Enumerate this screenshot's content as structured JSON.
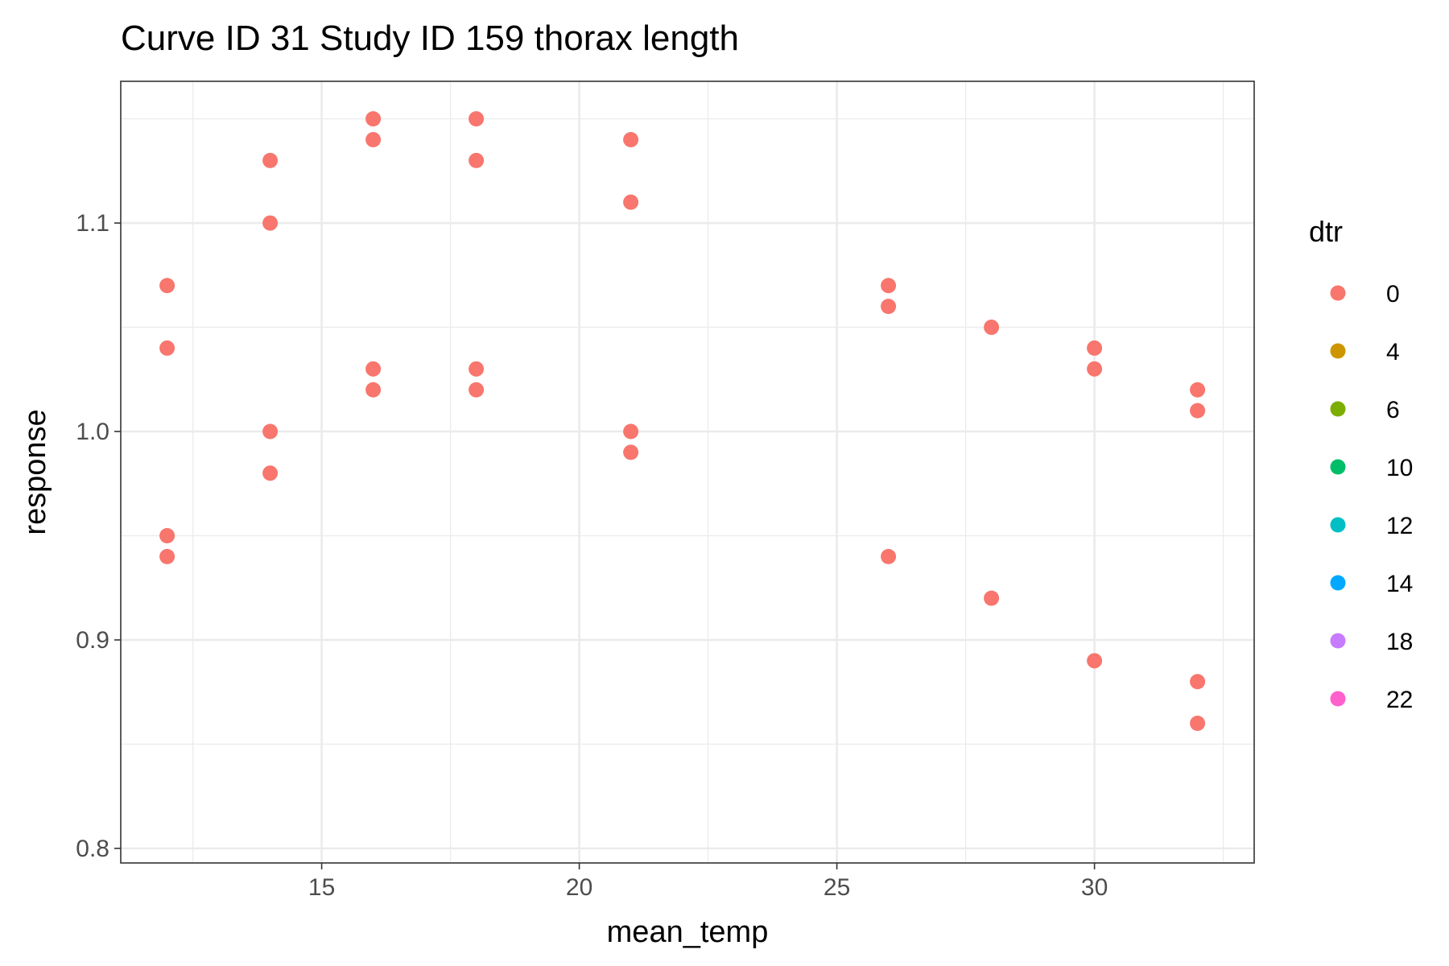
{
  "chart_data": {
    "type": "scatter",
    "title": "Curve ID 31 Study ID 159 thorax length",
    "xlabel": "mean_temp",
    "ylabel": "response",
    "xlim": [
      11.1,
      33.1
    ],
    "ylim": [
      0.793,
      1.168
    ],
    "x_ticks": [
      15,
      20,
      25,
      30
    ],
    "x_tick_labels": [
      "15",
      "20",
      "25",
      "30"
    ],
    "y_ticks": [
      0.8,
      0.9,
      1.0,
      1.1
    ],
    "y_tick_labels": [
      "0.8",
      "0.9",
      "1.0",
      "1.1"
    ],
    "grid": true,
    "legend": {
      "title": "dtr",
      "position": "right",
      "entries": [
        {
          "label": "0",
          "color": "#F8766D"
        },
        {
          "label": "4",
          "color": "#CD9600"
        },
        {
          "label": "6",
          "color": "#7CAE00"
        },
        {
          "label": "10",
          "color": "#00BE67"
        },
        {
          "label": "12",
          "color": "#00BFC4"
        },
        {
          "label": "14",
          "color": "#00A9FF"
        },
        {
          "label": "18",
          "color": "#C77CFF"
        },
        {
          "label": "22",
          "color": "#FF61CC"
        }
      ]
    },
    "series": [
      {
        "name": "0",
        "color": "#F8766D",
        "points": [
          [
            12,
            1.07
          ],
          [
            12,
            1.04
          ],
          [
            12,
            0.95
          ],
          [
            12,
            0.94
          ],
          [
            14,
            1.13
          ],
          [
            14,
            1.1
          ],
          [
            14,
            1.0
          ],
          [
            14,
            0.98
          ],
          [
            16,
            1.15
          ],
          [
            16,
            1.14
          ],
          [
            16,
            1.03
          ],
          [
            16,
            1.02
          ],
          [
            18,
            1.15
          ],
          [
            18,
            1.13
          ],
          [
            18,
            1.03
          ],
          [
            18,
            1.02
          ],
          [
            21,
            1.14
          ],
          [
            21,
            1.11
          ],
          [
            21,
            1.0
          ],
          [
            21,
            0.99
          ],
          [
            26,
            1.07
          ],
          [
            26,
            1.06
          ],
          [
            26,
            0.94
          ],
          [
            28,
            1.05
          ],
          [
            28,
            0.92
          ],
          [
            30,
            1.04
          ],
          [
            30,
            1.03
          ],
          [
            30,
            0.89
          ],
          [
            32,
            1.02
          ],
          [
            32,
            1.01
          ],
          [
            32,
            0.88
          ],
          [
            32,
            0.86
          ]
        ]
      }
    ]
  }
}
